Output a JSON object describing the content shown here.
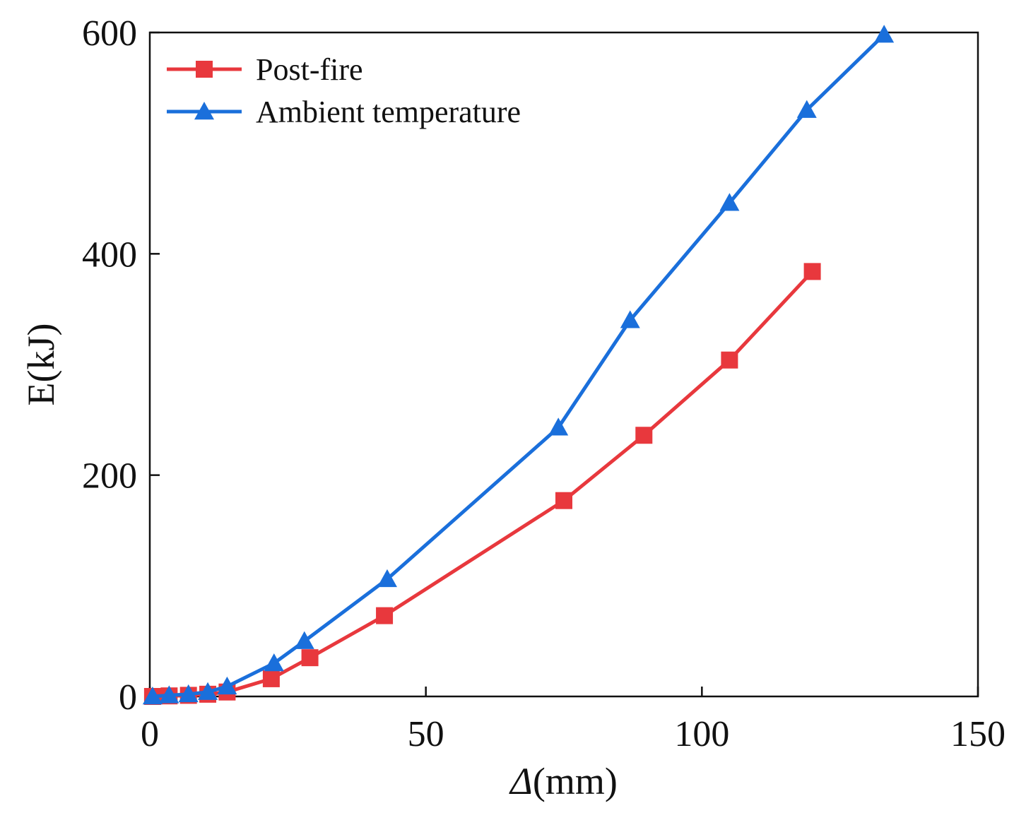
{
  "chart_data": {
    "type": "line",
    "title": "",
    "xlabel_symbol": "Δ",
    "xlabel_unit": "(mm)",
    "ylabel": "E(kJ)",
    "xlim": [
      0,
      150
    ],
    "ylim": [
      0,
      600
    ],
    "xticks": [
      "0",
      "50",
      "100",
      "150"
    ],
    "yticks": [
      "0",
      "200",
      "400",
      "600"
    ],
    "xtick_values": [
      0,
      50,
      100,
      150
    ],
    "ytick_values": [
      0,
      200,
      400,
      600
    ],
    "grid": false,
    "legend_position": "top-left",
    "series": [
      {
        "name": "Post-fire",
        "color": "#e8383d",
        "marker": "square",
        "x": [
          0.5,
          3.5,
          7,
          10.5,
          14,
          22,
          29,
          42.5,
          75,
          89.5,
          105,
          120
        ],
        "y": [
          0,
          0.5,
          1,
          2,
          4,
          16,
          35,
          73,
          177,
          236,
          304,
          384
        ]
      },
      {
        "name": "Ambient temperature",
        "color": "#1a6fdb",
        "marker": "triangle",
        "x": [
          0.5,
          3.5,
          7,
          10.5,
          14,
          22.5,
          28,
          43,
          74,
          87,
          105,
          119,
          133
        ],
        "y": [
          0,
          1,
          2,
          4,
          9,
          30,
          50,
          106,
          243,
          340,
          446,
          530,
          598
        ]
      }
    ]
  }
}
